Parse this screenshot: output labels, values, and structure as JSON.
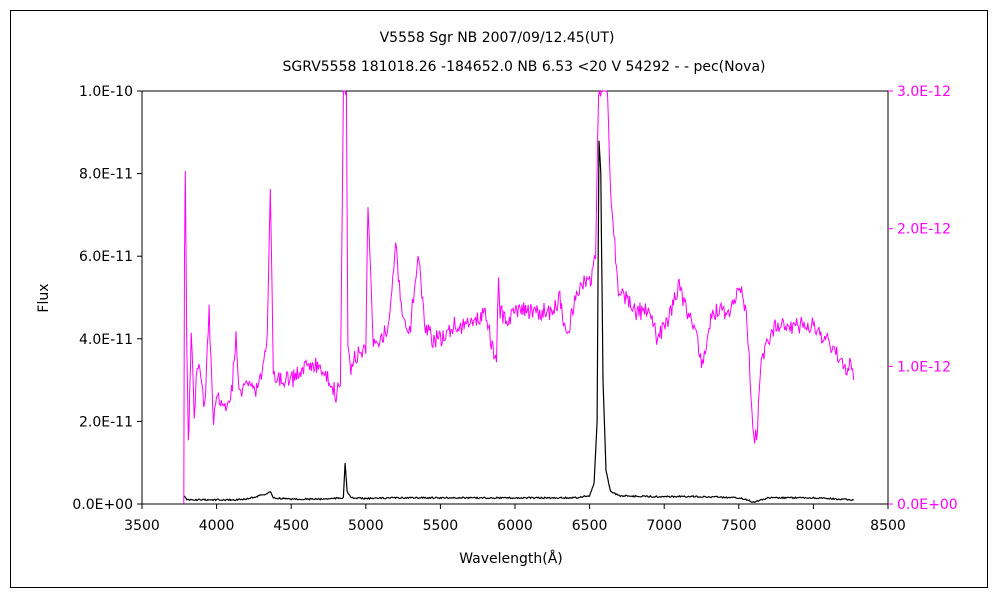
{
  "chart_data": {
    "type": "line",
    "title": "V5558 Sgr    NB    2007/09/12.45(UT)",
    "subtitle": "SGRV5558 181018.26 -184652.0 NB 6.53 <20 V 54292 - - pec(Nova)",
    "xlabel": "Wavelength(Å)",
    "ylabel": "Flux",
    "xlim": [
      3500,
      8500
    ],
    "ylim": [
      0,
      1e-10
    ],
    "y2lim": [
      0,
      3e-12
    ],
    "grid": false,
    "legend": "none",
    "x_ticks": [
      "3500",
      "4000",
      "4500",
      "5000",
      "5500",
      "6000",
      "6500",
      "7000",
      "7500",
      "8000",
      "8500"
    ],
    "y_ticks": [
      "0.0E+00",
      "2.0E-11",
      "4.0E-11",
      "6.0E-11",
      "8.0E-11",
      "1.0E-10"
    ],
    "y2_ticks": [
      "0.0E+00",
      "1.0E-12",
      "2.0E-12",
      "3.0E-12"
    ],
    "colors": {
      "primary": "#000000",
      "secondary": "#ff00ff"
    },
    "series": [
      {
        "axis": "left",
        "color": "#000000",
        "x": [
          3780,
          3790,
          3800,
          3850,
          3900,
          4000,
          4100,
          4200,
          4340,
          4360,
          4380,
          4500,
          4700,
          4850,
          4861,
          4875,
          4900,
          5000,
          5200,
          5500,
          5800,
          6000,
          6200,
          6400,
          6500,
          6530,
          6550,
          6563,
          6575,
          6590,
          6610,
          6640,
          6700,
          6900,
          7200,
          7500,
          7600,
          7700,
          8000,
          8270
        ],
        "y": [
          2e-12,
          1.5e-12,
          1e-12,
          1e-12,
          1e-12,
          1e-12,
          1e-12,
          1.2e-12,
          2.5e-12,
          3e-12,
          1.5e-12,
          1.2e-12,
          1.2e-12,
          1.5e-12,
          1e-11,
          3e-12,
          1.5e-12,
          1.3e-12,
          1.5e-12,
          1.5e-12,
          1.5e-12,
          1.5e-12,
          1.5e-12,
          1.5e-12,
          2e-12,
          5e-12,
          2e-11,
          8.8e-11,
          8e-11,
          3e-11,
          8e-12,
          3e-12,
          2e-12,
          1.8e-12,
          1.8e-12,
          1.5e-12,
          5e-13,
          1.5e-12,
          1.5e-12,
          1e-12
        ]
      },
      {
        "axis": "right",
        "color": "#ff00ff",
        "x": [
          3780,
          3785,
          3790,
          3800,
          3810,
          3820,
          3830,
          3850,
          3870,
          3900,
          3920,
          3950,
          3980,
          4000,
          4050,
          4100,
          4130,
          4150,
          4200,
          4250,
          4300,
          4340,
          4360,
          4380,
          4400,
          4500,
          4600,
          4700,
          4750,
          4800,
          4830,
          4850,
          4861,
          4870,
          4880,
          4900,
          4950,
          5000,
          5015,
          5050,
          5100,
          5150,
          5200,
          5250,
          5300,
          5350,
          5400,
          5450,
          5500,
          5600,
          5700,
          5800,
          5876,
          5890,
          5900,
          5950,
          6000,
          6100,
          6200,
          6250,
          6300,
          6350,
          6400,
          6450,
          6500,
          6540,
          6560,
          6580,
          6600,
          6620,
          6640,
          6680,
          6700,
          6750,
          6800,
          6850,
          6900,
          6950,
          7000,
          7050,
          7100,
          7150,
          7200,
          7250,
          7300,
          7350,
          7400,
          7450,
          7500,
          7550,
          7600,
          7620,
          7650,
          7700,
          7750,
          7800,
          7850,
          7900,
          7950,
          8000,
          8050,
          8100,
          8150,
          8200,
          8250,
          8270
        ],
        "y": [
          0.0,
          1.8e-12,
          2.4e-12,
          1.2e-12,
          4e-13,
          8e-13,
          1.3e-12,
          6e-13,
          1e-12,
          9e-13,
          7e-13,
          1.4e-12,
          6e-13,
          8e-13,
          7e-13,
          8e-13,
          1.2e-12,
          8e-13,
          9e-13,
          8e-13,
          9e-13,
          1.2e-12,
          2.3e-12,
          1e-12,
          9e-13,
          9e-13,
          1e-12,
          1e-12,
          9e-13,
          8e-13,
          9e-13,
          3e-12,
          3e-12,
          3e-12,
          1.2e-12,
          1e-12,
          1.1e-12,
          1.1e-12,
          2.2e-12,
          1.2e-12,
          1.2e-12,
          1.3e-12,
          1.9e-12,
          1.3e-12,
          1.3e-12,
          1.8e-12,
          1.3e-12,
          1.2e-12,
          1.2e-12,
          1.3e-12,
          1.3e-12,
          1.4e-12,
          1e-12,
          1.7e-12,
          1.4e-12,
          1.3e-12,
          1.4e-12,
          1.4e-12,
          1.4e-12,
          1.4e-12,
          1.5e-12,
          1.2e-12,
          1.5e-12,
          1.6e-12,
          1.6e-12,
          1.8e-12,
          3e-12,
          3e-12,
          3e-12,
          3e-12,
          2.3e-12,
          1.7e-12,
          1.5e-12,
          1.5e-12,
          1.4e-12,
          1.4e-12,
          1.4e-12,
          1.2e-12,
          1.3e-12,
          1.4e-12,
          1.6e-12,
          1.4e-12,
          1.3e-12,
          1e-12,
          1.3e-12,
          1.4e-12,
          1.4e-12,
          1.4e-12,
          1.6e-12,
          1.4e-12,
          5e-13,
          5e-13,
          1e-12,
          1.2e-12,
          1.3e-12,
          1.3e-12,
          1.3e-12,
          1.3e-12,
          1.3e-12,
          1.3e-12,
          1.2e-12,
          1.2e-12,
          1.1e-12,
          1e-12,
          1e-12,
          9e-13
        ]
      }
    ]
  }
}
